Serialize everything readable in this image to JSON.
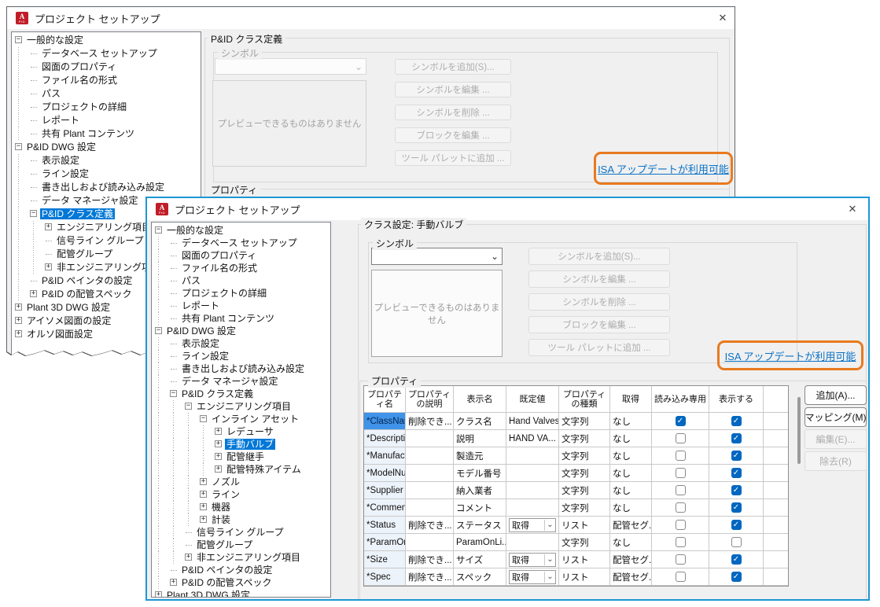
{
  "colors": {
    "link_blue": "#0a72c6",
    "annotation_orange": "#e87a1e",
    "selection_blue": "#0078d7",
    "check_blue": "#0067c0",
    "front_border_blue": "#1d97d4",
    "dialog_bg": "#f0f0f0",
    "icon_red": "#c01d28",
    "grid_sel": "#3f93e8"
  },
  "icons": {
    "close": "✕",
    "chevron": "⌄",
    "check": "✓",
    "collapse": "−",
    "expand": "+",
    "app_letter": "A",
    "app_badge": "PID"
  },
  "back": {
    "title": "プロジェクト セットアップ",
    "tree": [
      {
        "label": "一般的な設定",
        "d": 0,
        "exp": "m"
      },
      {
        "label": "データベース セットアップ",
        "d": 1,
        "exp": "l"
      },
      {
        "label": "図面のプロパティ",
        "d": 1,
        "exp": "l"
      },
      {
        "label": "ファイル名の形式",
        "d": 1,
        "exp": "l"
      },
      {
        "label": "パス",
        "d": 1,
        "exp": "l"
      },
      {
        "label": "プロジェクトの詳細",
        "d": 1,
        "exp": "l"
      },
      {
        "label": "レポート",
        "d": 1,
        "exp": "l"
      },
      {
        "label": "共有 Plant コンテンツ",
        "d": 1,
        "exp": "l"
      },
      {
        "label": "P&ID DWG 設定",
        "d": 0,
        "exp": "m"
      },
      {
        "label": "表示設定",
        "d": 1,
        "exp": "l"
      },
      {
        "label": "ライン設定",
        "d": 1,
        "exp": "l"
      },
      {
        "label": "書き出しおよび読み込み設定",
        "d": 1,
        "exp": "l"
      },
      {
        "label": "データ マネージャ設定",
        "d": 1,
        "exp": "l"
      },
      {
        "label": "P&ID クラス定義",
        "d": 1,
        "exp": "m",
        "sel": true
      },
      {
        "label": "エンジニアリング項目",
        "d": 2,
        "exp": "p"
      },
      {
        "label": "信号ライン グループ",
        "d": 2,
        "exp": "l"
      },
      {
        "label": "配管グループ",
        "d": 2,
        "exp": "l"
      },
      {
        "label": "非エンジニアリング項目",
        "d": 2,
        "exp": "p"
      },
      {
        "label": "P&ID ペインタの設定",
        "d": 1,
        "exp": "l"
      },
      {
        "label": "P&ID の配管スペック",
        "d": 1,
        "exp": "p"
      },
      {
        "label": "Plant 3D DWG 設定",
        "d": 0,
        "exp": "p"
      },
      {
        "label": "アイソメ図面の設定",
        "d": 0,
        "exp": "p"
      },
      {
        "label": "オルソ図面設定",
        "d": 0,
        "exp": "p"
      }
    ],
    "panel": {
      "group": "P&ID クラス定義",
      "symbol": "シンボル",
      "preview": "プレビューできるものはありません",
      "buttons": [
        "シンボルを追加(S)...",
        "シンボルを編集 ...",
        "シンボルを削除 ...",
        "ブロックを編集 ...",
        "ツール パレットに追加 ..."
      ],
      "isa": "ISA アップデートが利用可能",
      "properties": "プロパティ"
    }
  },
  "front": {
    "title": "プロジェクト セットアップ",
    "tree": [
      {
        "label": "一般的な設定",
        "d": 0,
        "exp": "m"
      },
      {
        "label": "データベース セットアップ",
        "d": 1,
        "exp": "l"
      },
      {
        "label": "図面のプロパティ",
        "d": 1,
        "exp": "l"
      },
      {
        "label": "ファイル名の形式",
        "d": 1,
        "exp": "l"
      },
      {
        "label": "パス",
        "d": 1,
        "exp": "l"
      },
      {
        "label": "プロジェクトの詳細",
        "d": 1,
        "exp": "l"
      },
      {
        "label": "レポート",
        "d": 1,
        "exp": "l"
      },
      {
        "label": "共有 Plant コンテンツ",
        "d": 1,
        "exp": "l"
      },
      {
        "label": "P&ID DWG 設定",
        "d": 0,
        "exp": "m"
      },
      {
        "label": "表示設定",
        "d": 1,
        "exp": "l"
      },
      {
        "label": "ライン設定",
        "d": 1,
        "exp": "l"
      },
      {
        "label": "書き出しおよび読み込み設定",
        "d": 1,
        "exp": "l"
      },
      {
        "label": "データ マネージャ設定",
        "d": 1,
        "exp": "l"
      },
      {
        "label": "P&ID クラス定義",
        "d": 1,
        "exp": "m"
      },
      {
        "label": "エンジニアリング項目",
        "d": 2,
        "exp": "m"
      },
      {
        "label": "インライン アセット",
        "d": 3,
        "exp": "m"
      },
      {
        "label": "レデューサ",
        "d": 4,
        "exp": "p"
      },
      {
        "label": "手動バルブ",
        "d": 4,
        "exp": "p",
        "sel": true
      },
      {
        "label": "配管継手",
        "d": 4,
        "exp": "p"
      },
      {
        "label": "配管特殊アイテム",
        "d": 4,
        "exp": "p"
      },
      {
        "label": "ノズル",
        "d": 3,
        "exp": "p"
      },
      {
        "label": "ライン",
        "d": 3,
        "exp": "p"
      },
      {
        "label": "機器",
        "d": 3,
        "exp": "p"
      },
      {
        "label": "計装",
        "d": 3,
        "exp": "p"
      },
      {
        "label": "信号ライン グループ",
        "d": 2,
        "exp": "l"
      },
      {
        "label": "配管グループ",
        "d": 2,
        "exp": "l"
      },
      {
        "label": "非エンジニアリング項目",
        "d": 2,
        "exp": "p"
      },
      {
        "label": "P&ID ペインタの設定",
        "d": 1,
        "exp": "l"
      },
      {
        "label": "P&ID の配管スペック",
        "d": 1,
        "exp": "p"
      },
      {
        "label": "Plant 3D DWG 設定",
        "d": 0,
        "exp": "p"
      }
    ],
    "panel": {
      "group": "クラス設定: 手動バルブ",
      "symbol": "シンボル",
      "preview": "プレビューできるものはありません",
      "buttons": [
        "シンボルを追加(S)...",
        "シンボルを編集 ...",
        "シンボルを削除 ...",
        "ブロックを編集 ...",
        "ツール パレットに追加 ..."
      ],
      "isa": "ISA アップデートが利用可能",
      "properties": "プロパティ"
    },
    "table": {
      "headers": [
        "プロパティ名",
        "プロパティの説明",
        "表示名",
        "既定値",
        "プロパティの種類",
        "取得",
        "読み込み専用",
        "表示する"
      ],
      "rows": [
        {
          "name": "*ClassName",
          "desc": "削除でき...",
          "disp": "クラス名",
          "def": "Hand Valves",
          "combo": false,
          "type": "文字列",
          "acq": "なし",
          "ro": true,
          "show": true,
          "sel": true
        },
        {
          "name": "*Description",
          "desc": "",
          "disp": "説明",
          "def": "HAND VA...",
          "combo": false,
          "type": "文字列",
          "acq": "なし",
          "ro": false,
          "show": true
        },
        {
          "name": "*Manufact...",
          "desc": "",
          "disp": "製造元",
          "def": "",
          "combo": false,
          "type": "文字列",
          "acq": "なし",
          "ro": false,
          "show": true
        },
        {
          "name": "*ModelNu...",
          "desc": "",
          "disp": "モデル番号",
          "def": "",
          "combo": false,
          "type": "文字列",
          "acq": "なし",
          "ro": false,
          "show": true
        },
        {
          "name": "*Supplier",
          "desc": "",
          "disp": "納入業者",
          "def": "",
          "combo": false,
          "type": "文字列",
          "acq": "なし",
          "ro": false,
          "show": true
        },
        {
          "name": "*Comment",
          "desc": "",
          "disp": "コメント",
          "def": "",
          "combo": false,
          "type": "文字列",
          "acq": "なし",
          "ro": false,
          "show": true
        },
        {
          "name": "*Status",
          "desc": "削除でき...",
          "disp": "ステータス",
          "def": "取得",
          "combo": true,
          "type": "リスト",
          "acq": "配管セグ...",
          "ro": false,
          "show": true
        },
        {
          "name": "*ParamOn...",
          "desc": "",
          "disp": "ParamOnLi...",
          "def": "",
          "combo": false,
          "type": "文字列",
          "acq": "なし",
          "ro": false,
          "show": false
        },
        {
          "name": "*Size",
          "desc": "削除でき...",
          "disp": "サイズ",
          "def": "取得",
          "combo": true,
          "type": "リスト",
          "acq": "配管セグ...",
          "ro": false,
          "show": true
        },
        {
          "name": "*Spec",
          "desc": "削除でき...",
          "disp": "スペック",
          "def": "取得",
          "combo": true,
          "type": "リスト",
          "acq": "配管セグ...",
          "ro": false,
          "show": true
        }
      ]
    },
    "side_buttons": [
      {
        "label": "追加(A)...",
        "enabled": true
      },
      {
        "label": "マッピング(M)",
        "enabled": true
      },
      {
        "label": "編集(E)...",
        "enabled": false
      },
      {
        "label": "除去(R)",
        "enabled": false
      }
    ]
  }
}
